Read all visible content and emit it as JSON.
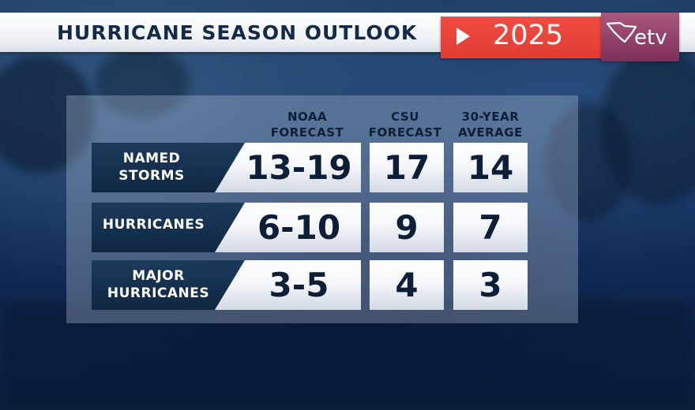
{
  "header": {
    "title": "HURRICANE SEASON OUTLOOK",
    "year": "2025",
    "play_icon": "play-triangle-icon",
    "logo_text": "etv",
    "logo_icon": "south-carolina-state-icon",
    "colors": {
      "title": "#132a48",
      "year_box": "#e8443a",
      "logo_box": "#8e3c66"
    }
  },
  "table": {
    "columns": [
      {
        "line1": "NOAA",
        "line2": "FORECAST"
      },
      {
        "line1": "CSU",
        "line2": "FORECAST"
      },
      {
        "line1": "30-YEAR",
        "line2": "AVERAGE"
      }
    ],
    "rows": [
      {
        "label_line1": "NAMED",
        "label_line2": "STORMS",
        "noaa": "13-19",
        "csu": "17",
        "avg": "14"
      },
      {
        "label_line1": "HURRICANES",
        "label_line2": "",
        "noaa": "6-10",
        "csu": "9",
        "avg": "7"
      },
      {
        "label_line1": "MAJOR",
        "label_line2": "HURRICANES",
        "noaa": "3-5",
        "csu": "4",
        "avg": "3"
      }
    ]
  }
}
